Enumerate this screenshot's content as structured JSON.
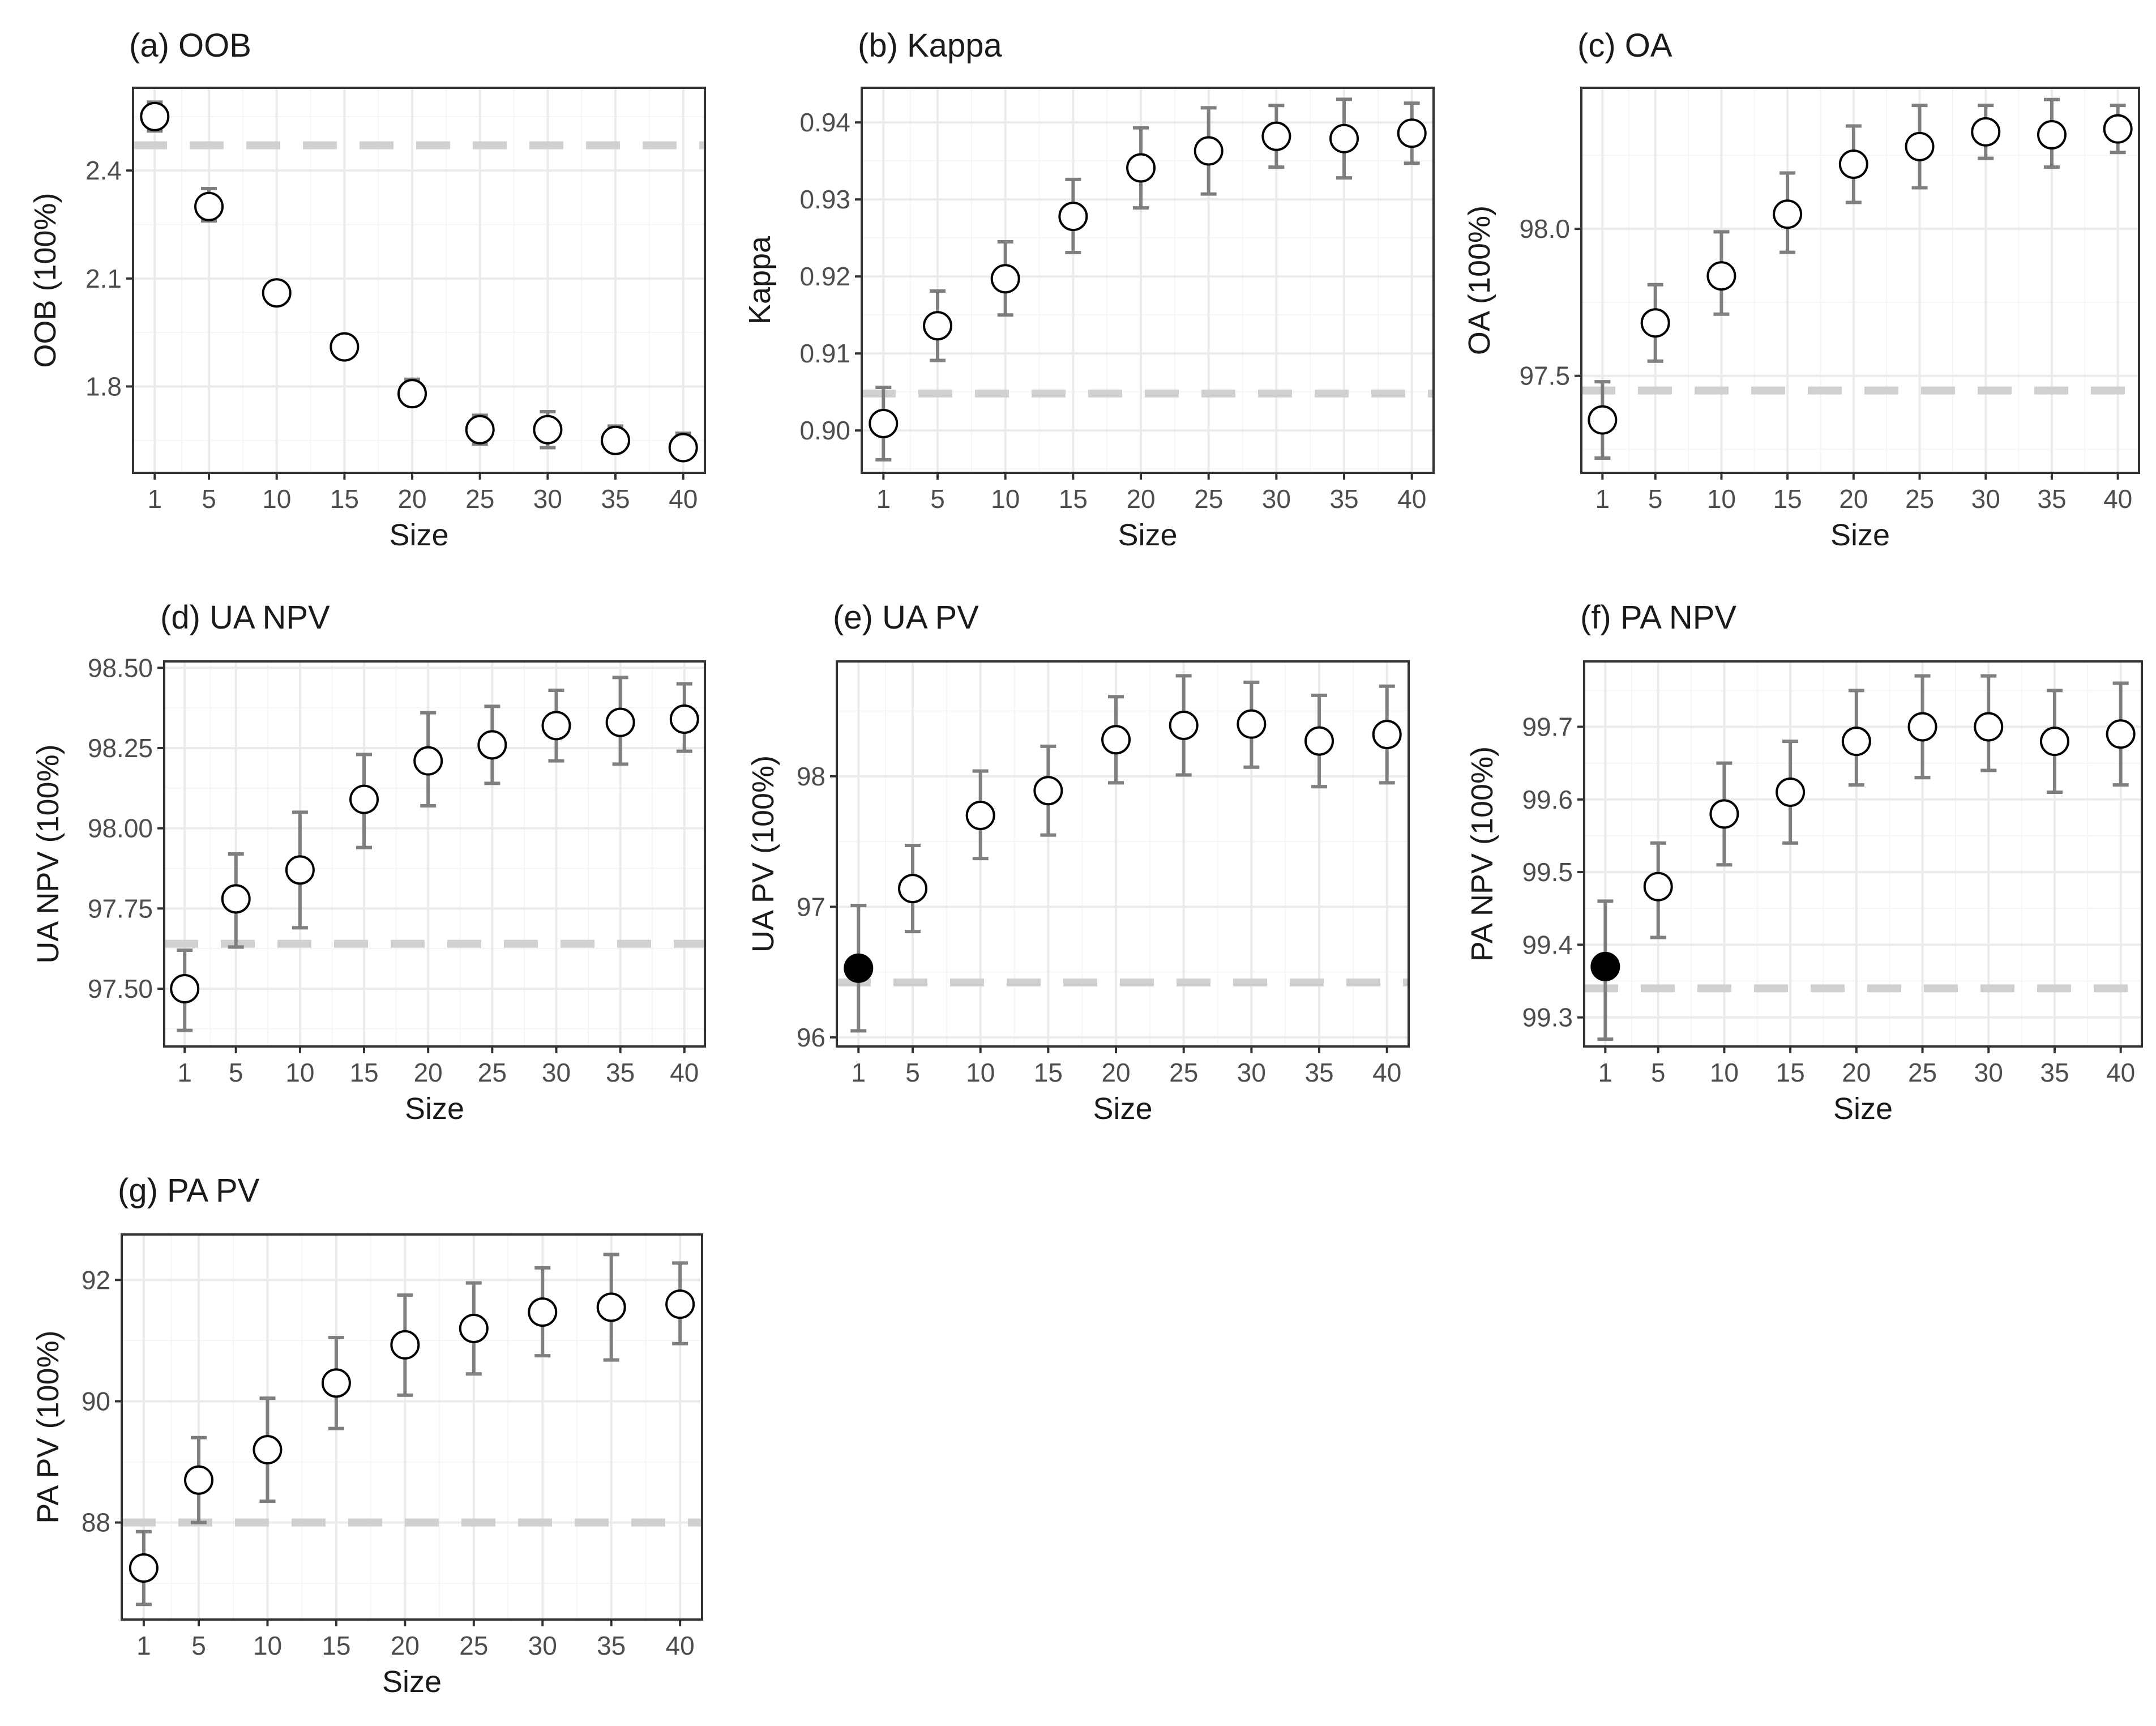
{
  "colors": {
    "background": "#ffffff",
    "grid_major": "#ebebeb",
    "grid_minor": "#f5f5f5",
    "panel_border": "#333333",
    "errorbar": "#7f7f7f",
    "reference_line": "#d0d0d0",
    "point_stroke": "#000000",
    "point_open_fill": "#ffffff",
    "point_filled": "#000000",
    "text": "#1a1a1a",
    "tick_text": "#4d4d4d"
  },
  "chart_data": [
    {
      "id": "a",
      "type": "scatter",
      "title": "(a) OOB",
      "xlabel": "Size",
      "ylabel": "OOB (100%)",
      "x": [
        1,
        5,
        10,
        15,
        20,
        25,
        30,
        35,
        40
      ],
      "x_ticks": [
        "1",
        "5",
        "10",
        "15",
        "20",
        "25",
        "30",
        "35",
        "40"
      ],
      "y": [
        2.55,
        2.3,
        2.06,
        1.91,
        1.78,
        1.68,
        1.68,
        1.65,
        1.63
      ],
      "y_low": [
        2.51,
        2.26,
        2.03,
        1.89,
        1.75,
        1.64,
        1.63,
        1.62,
        1.6
      ],
      "y_high": [
        2.59,
        2.35,
        2.09,
        1.94,
        1.82,
        1.72,
        1.73,
        1.69,
        1.67
      ],
      "filled": [
        false,
        false,
        false,
        false,
        false,
        false,
        false,
        false,
        false
      ],
      "reference_y": 2.47,
      "ylim": [
        1.56,
        2.63
      ],
      "y_ticks": [
        1.8,
        2.1,
        2.4
      ],
      "y_tick_labels": [
        "1.8",
        "2.1",
        "2.4"
      ]
    },
    {
      "id": "b",
      "type": "scatter",
      "title": "(b) Kappa",
      "xlabel": "Size",
      "ylabel": "Kappa",
      "x": [
        1,
        5,
        10,
        15,
        20,
        25,
        30,
        35,
        40
      ],
      "x_ticks": [
        "1",
        "5",
        "10",
        "15",
        "20",
        "25",
        "30",
        "35",
        "40"
      ],
      "y": [
        0.9009,
        0.9136,
        0.9197,
        0.9278,
        0.9341,
        0.9363,
        0.9382,
        0.9379,
        0.9386
      ],
      "y_low": [
        0.8962,
        0.9091,
        0.915,
        0.9231,
        0.9289,
        0.9307,
        0.9342,
        0.9328,
        0.9347
      ],
      "y_high": [
        0.9056,
        0.9181,
        0.9245,
        0.9326,
        0.9393,
        0.9419,
        0.9422,
        0.943,
        0.9425
      ],
      "filled": [
        false,
        false,
        false,
        false,
        false,
        false,
        false,
        false,
        false
      ],
      "reference_y": 0.9048,
      "ylim": [
        0.8945,
        0.9445
      ],
      "y_ticks": [
        0.9,
        0.91,
        0.92,
        0.93,
        0.94
      ],
      "y_tick_labels": [
        "0.90",
        "0.91",
        "0.92",
        "0.93",
        "0.94"
      ]
    },
    {
      "id": "c",
      "type": "scatter",
      "title": "(c) OA",
      "xlabel": "Size",
      "ylabel": "OA (100%)",
      "x": [
        1,
        5,
        10,
        15,
        20,
        25,
        30,
        35,
        40
      ],
      "x_ticks": [
        "1",
        "5",
        "10",
        "15",
        "20",
        "25",
        "30",
        "35",
        "40"
      ],
      "y": [
        97.35,
        97.68,
        97.84,
        98.05,
        98.22,
        98.28,
        98.33,
        98.32,
        98.34
      ],
      "y_low": [
        97.22,
        97.55,
        97.71,
        97.92,
        98.09,
        98.14,
        98.24,
        98.21,
        98.26
      ],
      "y_high": [
        97.48,
        97.81,
        97.99,
        98.19,
        98.35,
        98.42,
        98.42,
        98.44,
        98.42
      ],
      "filled": [
        false,
        false,
        false,
        false,
        false,
        false,
        false,
        false,
        false
      ],
      "reference_y": 97.45,
      "ylim": [
        97.17,
        98.48
      ],
      "y_ticks": [
        97.5,
        98.0
      ],
      "y_tick_labels": [
        "97.5",
        "98.0"
      ]
    },
    {
      "id": "d",
      "type": "scatter",
      "title": "(d) UA NPV",
      "xlabel": "Size",
      "ylabel": "UA NPV (100%)",
      "x": [
        1,
        5,
        10,
        15,
        20,
        25,
        30,
        35,
        40
      ],
      "x_ticks": [
        "1",
        "5",
        "10",
        "15",
        "20",
        "25",
        "30",
        "35",
        "40"
      ],
      "y": [
        97.5,
        97.78,
        97.87,
        98.09,
        98.21,
        98.26,
        98.32,
        98.33,
        98.34
      ],
      "y_low": [
        97.37,
        97.63,
        97.69,
        97.94,
        98.07,
        98.14,
        98.21,
        98.2,
        98.24
      ],
      "y_high": [
        97.62,
        97.92,
        98.05,
        98.23,
        98.36,
        98.38,
        98.43,
        98.47,
        98.45
      ],
      "filled": [
        false,
        false,
        false,
        false,
        false,
        false,
        false,
        false,
        false
      ],
      "reference_y": 97.64,
      "ylim": [
        97.32,
        98.52
      ],
      "y_ticks": [
        97.5,
        97.75,
        98.0,
        98.25,
        98.5
      ],
      "y_tick_labels": [
        "97.50",
        "97.75",
        "98.00",
        "98.25",
        "98.50"
      ]
    },
    {
      "id": "e",
      "type": "scatter",
      "title": "(e) UA PV",
      "xlabel": "Size",
      "ylabel": "UA PV (100%)",
      "x": [
        1,
        5,
        10,
        15,
        20,
        25,
        30,
        35,
        40
      ],
      "x_ticks": [
        "1",
        "5",
        "10",
        "15",
        "20",
        "25",
        "30",
        "35",
        "40"
      ],
      "y": [
        96.53,
        97.14,
        97.7,
        97.89,
        98.28,
        98.39,
        98.4,
        98.27,
        98.32
      ],
      "y_low": [
        96.05,
        96.81,
        97.37,
        97.55,
        97.95,
        98.01,
        98.07,
        97.92,
        97.95
      ],
      "y_high": [
        97.01,
        97.47,
        98.04,
        98.23,
        98.61,
        98.77,
        98.72,
        98.62,
        98.69
      ],
      "filled": [
        true,
        false,
        false,
        false,
        false,
        false,
        false,
        false,
        false
      ],
      "reference_y": 96.42,
      "ylim": [
        95.93,
        98.88
      ],
      "y_ticks": [
        96,
        97,
        98
      ],
      "y_tick_labels": [
        "96",
        "97",
        "98"
      ]
    },
    {
      "id": "f",
      "type": "scatter",
      "title": "(f) PA NPV",
      "xlabel": "Size",
      "ylabel": "PA NPV (100%)",
      "x": [
        1,
        5,
        10,
        15,
        20,
        25,
        30,
        35,
        40
      ],
      "x_ticks": [
        "1",
        "5",
        "10",
        "15",
        "20",
        "25",
        "30",
        "35",
        "40"
      ],
      "y": [
        99.37,
        99.48,
        99.58,
        99.61,
        99.68,
        99.7,
        99.7,
        99.68,
        99.69
      ],
      "y_low": [
        99.27,
        99.41,
        99.51,
        99.54,
        99.62,
        99.63,
        99.64,
        99.61,
        99.62
      ],
      "y_high": [
        99.46,
        99.54,
        99.65,
        99.68,
        99.75,
        99.77,
        99.77,
        99.75,
        99.76
      ],
      "filled": [
        true,
        false,
        false,
        false,
        false,
        false,
        false,
        false,
        false
      ],
      "reference_y": 99.34,
      "ylim": [
        99.26,
        99.79
      ],
      "y_ticks": [
        99.3,
        99.4,
        99.5,
        99.6,
        99.7
      ],
      "y_tick_labels": [
        "99.3",
        "99.4",
        "99.5",
        "99.6",
        "99.7"
      ]
    },
    {
      "id": "g",
      "type": "scatter",
      "title": "(g) PA PV",
      "xlabel": "Size",
      "ylabel": "PA PV (100%)",
      "x": [
        1,
        5,
        10,
        15,
        20,
        25,
        30,
        35,
        40
      ],
      "x_ticks": [
        "1",
        "5",
        "10",
        "15",
        "20",
        "25",
        "30",
        "35",
        "40"
      ],
      "y": [
        87.25,
        88.7,
        89.2,
        90.3,
        90.93,
        91.2,
        91.47,
        91.55,
        91.6
      ],
      "y_low": [
        86.65,
        88.0,
        88.35,
        89.55,
        90.1,
        90.45,
        90.75,
        90.68,
        90.95
      ],
      "y_high": [
        87.85,
        89.4,
        90.05,
        91.05,
        91.75,
        91.95,
        92.2,
        92.42,
        92.28
      ],
      "filled": [
        false,
        false,
        false,
        false,
        false,
        false,
        false,
        false,
        false
      ],
      "reference_y": 88.0,
      "ylim": [
        86.4,
        92.75
      ],
      "y_ticks": [
        88,
        90,
        92
      ],
      "y_tick_labels": [
        "88",
        "90",
        "92"
      ]
    }
  ]
}
